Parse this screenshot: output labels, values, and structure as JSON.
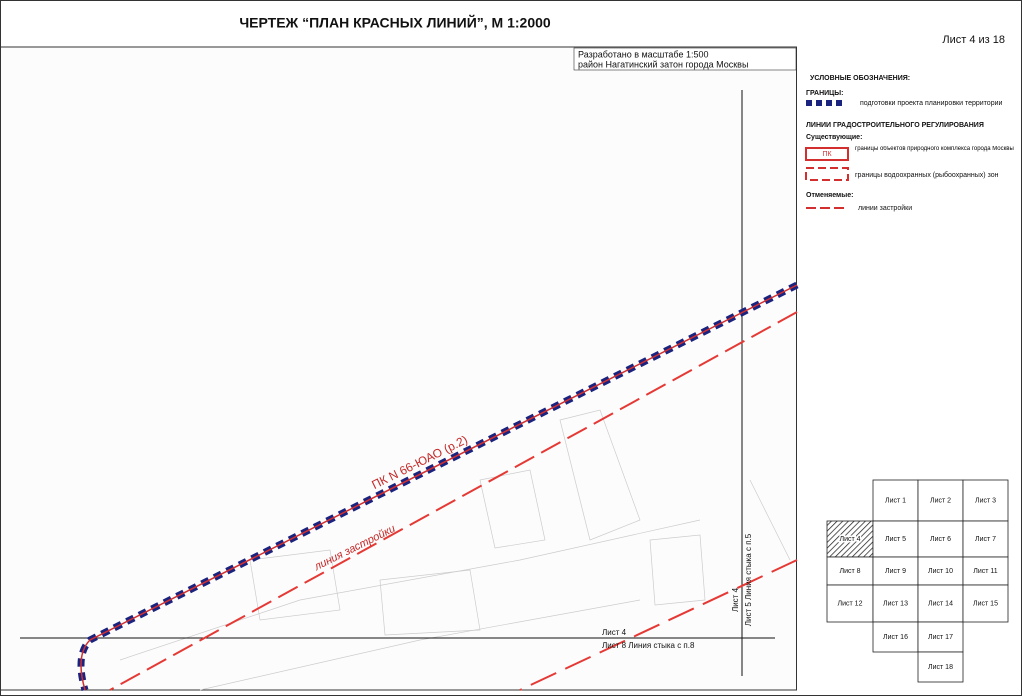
{
  "header": {
    "title": "ЧЕРТЕЖ “ПЛАН КРАСНЫХ ЛИНИЙ”, М 1:2000",
    "sheet": "Лист 4 из 18"
  },
  "scale_note": {
    "line1": "Разработано в масштабе 1:500",
    "line2": "район Нагатинский затон города Москвы"
  },
  "legend": {
    "title": "УСЛОВНЫЕ ОБОЗНАЧЕНИЯ:",
    "boundaries_heading": "ГРАНИЦЫ:",
    "boundary_item": "подготовки проекта планировки территории",
    "regulation_heading": "ЛИНИИ ГРАДОСТРОИТЕЛЬНОГО РЕГУЛИРОВАНИЯ",
    "existing_heading": "Существующие:",
    "pk_symbol": "ПК",
    "pk_item": "границы объектов природного комплекса города Москвы",
    "water_item": "границы водоохранных (рыбоохранных) зон",
    "cancelled_heading": "Отменяемые:",
    "building_line_item": "линии застройки"
  },
  "map_labels": {
    "pk": "ПК N 66-ЮАО (р.2)",
    "building_line": "линия застройки",
    "sheet_top": "Лист 4",
    "sheet_bottom": "Лист 8 Линия стыка с п.8",
    "vertical_left": "Лист 4",
    "vertical_right": "Лист 5 Линия стыка с п.5"
  },
  "index_sheets": [
    "Лист 1",
    "Лист 2",
    "Лист 3",
    "Лист 4",
    "Лист 5",
    "Лист 6",
    "Лист 7",
    "Лист 8",
    "Лист 9",
    "Лист 10",
    "Лист 11",
    "Лист 12",
    "Лист 13",
    "Лист 14",
    "Лист 15",
    "Лист 16",
    "Лист 17",
    "Лист 18"
  ]
}
